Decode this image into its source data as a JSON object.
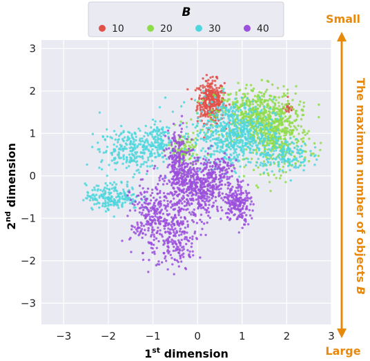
{
  "chart_data": {
    "type": "scatter",
    "xlabel_main": "1",
    "xlabel_sup": "st",
    "xlabel_rest": " dimension",
    "ylabel_main": "2",
    "ylabel_sup": "nd",
    "ylabel_rest": " dimension",
    "xlim": [
      -3.5,
      3.0
    ],
    "ylim": [
      -3.5,
      3.2
    ],
    "xticks": [
      -3,
      -2,
      -1,
      0,
      1,
      2,
      3
    ],
    "yticks": [
      3,
      2,
      1,
      0,
      -1,
      -2,
      -3
    ],
    "grid": true,
    "legend": {
      "title": "B",
      "placement": "top",
      "entries": [
        {
          "label": "10",
          "color": "#e0514a"
        },
        {
          "label": "20",
          "color": "#8fdc4a"
        },
        {
          "label": "30",
          "color": "#4fd6dd"
        },
        {
          "label": "40",
          "color": "#9b4fdc"
        }
      ]
    },
    "series": [
      {
        "name": "10",
        "color": "#e0514a",
        "clusters": [
          {
            "cx": 0.3,
            "cy": 1.75,
            "sx": 0.15,
            "sy": 0.25,
            "n": 350
          },
          {
            "cx": 2.05,
            "cy": 1.6,
            "sx": 0.06,
            "sy": 0.08,
            "n": 25
          }
        ]
      },
      {
        "name": "20",
        "color": "#8fdc4a",
        "clusters": [
          {
            "cx": 1.3,
            "cy": 1.4,
            "sx": 0.45,
            "sy": 0.35,
            "n": 500
          },
          {
            "cx": 1.8,
            "cy": 0.9,
            "sx": 0.35,
            "sy": 0.4,
            "n": 350
          },
          {
            "cx": -0.3,
            "cy": 0.6,
            "sx": 0.18,
            "sy": 0.25,
            "n": 120
          }
        ]
      },
      {
        "name": "30",
        "color": "#4fd6dd",
        "clusters": [
          {
            "cx": 0.8,
            "cy": 1.0,
            "sx": 0.45,
            "sy": 0.4,
            "n": 600
          },
          {
            "cx": -1.5,
            "cy": 0.6,
            "sx": 0.35,
            "sy": 0.25,
            "n": 250
          },
          {
            "cx": -0.9,
            "cy": 0.9,
            "sx": 0.15,
            "sy": 0.2,
            "n": 100
          },
          {
            "cx": -1.9,
            "cy": -0.5,
            "sx": 0.3,
            "sy": 0.15,
            "n": 200
          },
          {
            "cx": 1.9,
            "cy": 0.5,
            "sx": 0.3,
            "sy": 0.2,
            "n": 150
          }
        ]
      },
      {
        "name": "40",
        "color": "#9b4fdc",
        "clusters": [
          {
            "cx": 0.0,
            "cy": -0.3,
            "sx": 0.3,
            "sy": 0.35,
            "n": 500
          },
          {
            "cx": -0.45,
            "cy": 0.3,
            "sx": 0.12,
            "sy": 0.4,
            "n": 200
          },
          {
            "cx": -1.0,
            "cy": -1.0,
            "sx": 0.25,
            "sy": 0.45,
            "n": 300
          },
          {
            "cx": -0.4,
            "cy": -1.5,
            "sx": 0.2,
            "sy": 0.3,
            "n": 150
          },
          {
            "cx": 0.9,
            "cy": -0.6,
            "sx": 0.15,
            "sy": 0.25,
            "n": 200
          },
          {
            "cx": 0.5,
            "cy": 0.1,
            "sx": 0.15,
            "sy": 0.2,
            "n": 100
          }
        ]
      }
    ]
  },
  "side_annotation": {
    "top_label": "Small",
    "bottom_label": "Large",
    "text_main": "The maximum number of objects ",
    "text_italic": "B",
    "color": "#e8890c"
  }
}
